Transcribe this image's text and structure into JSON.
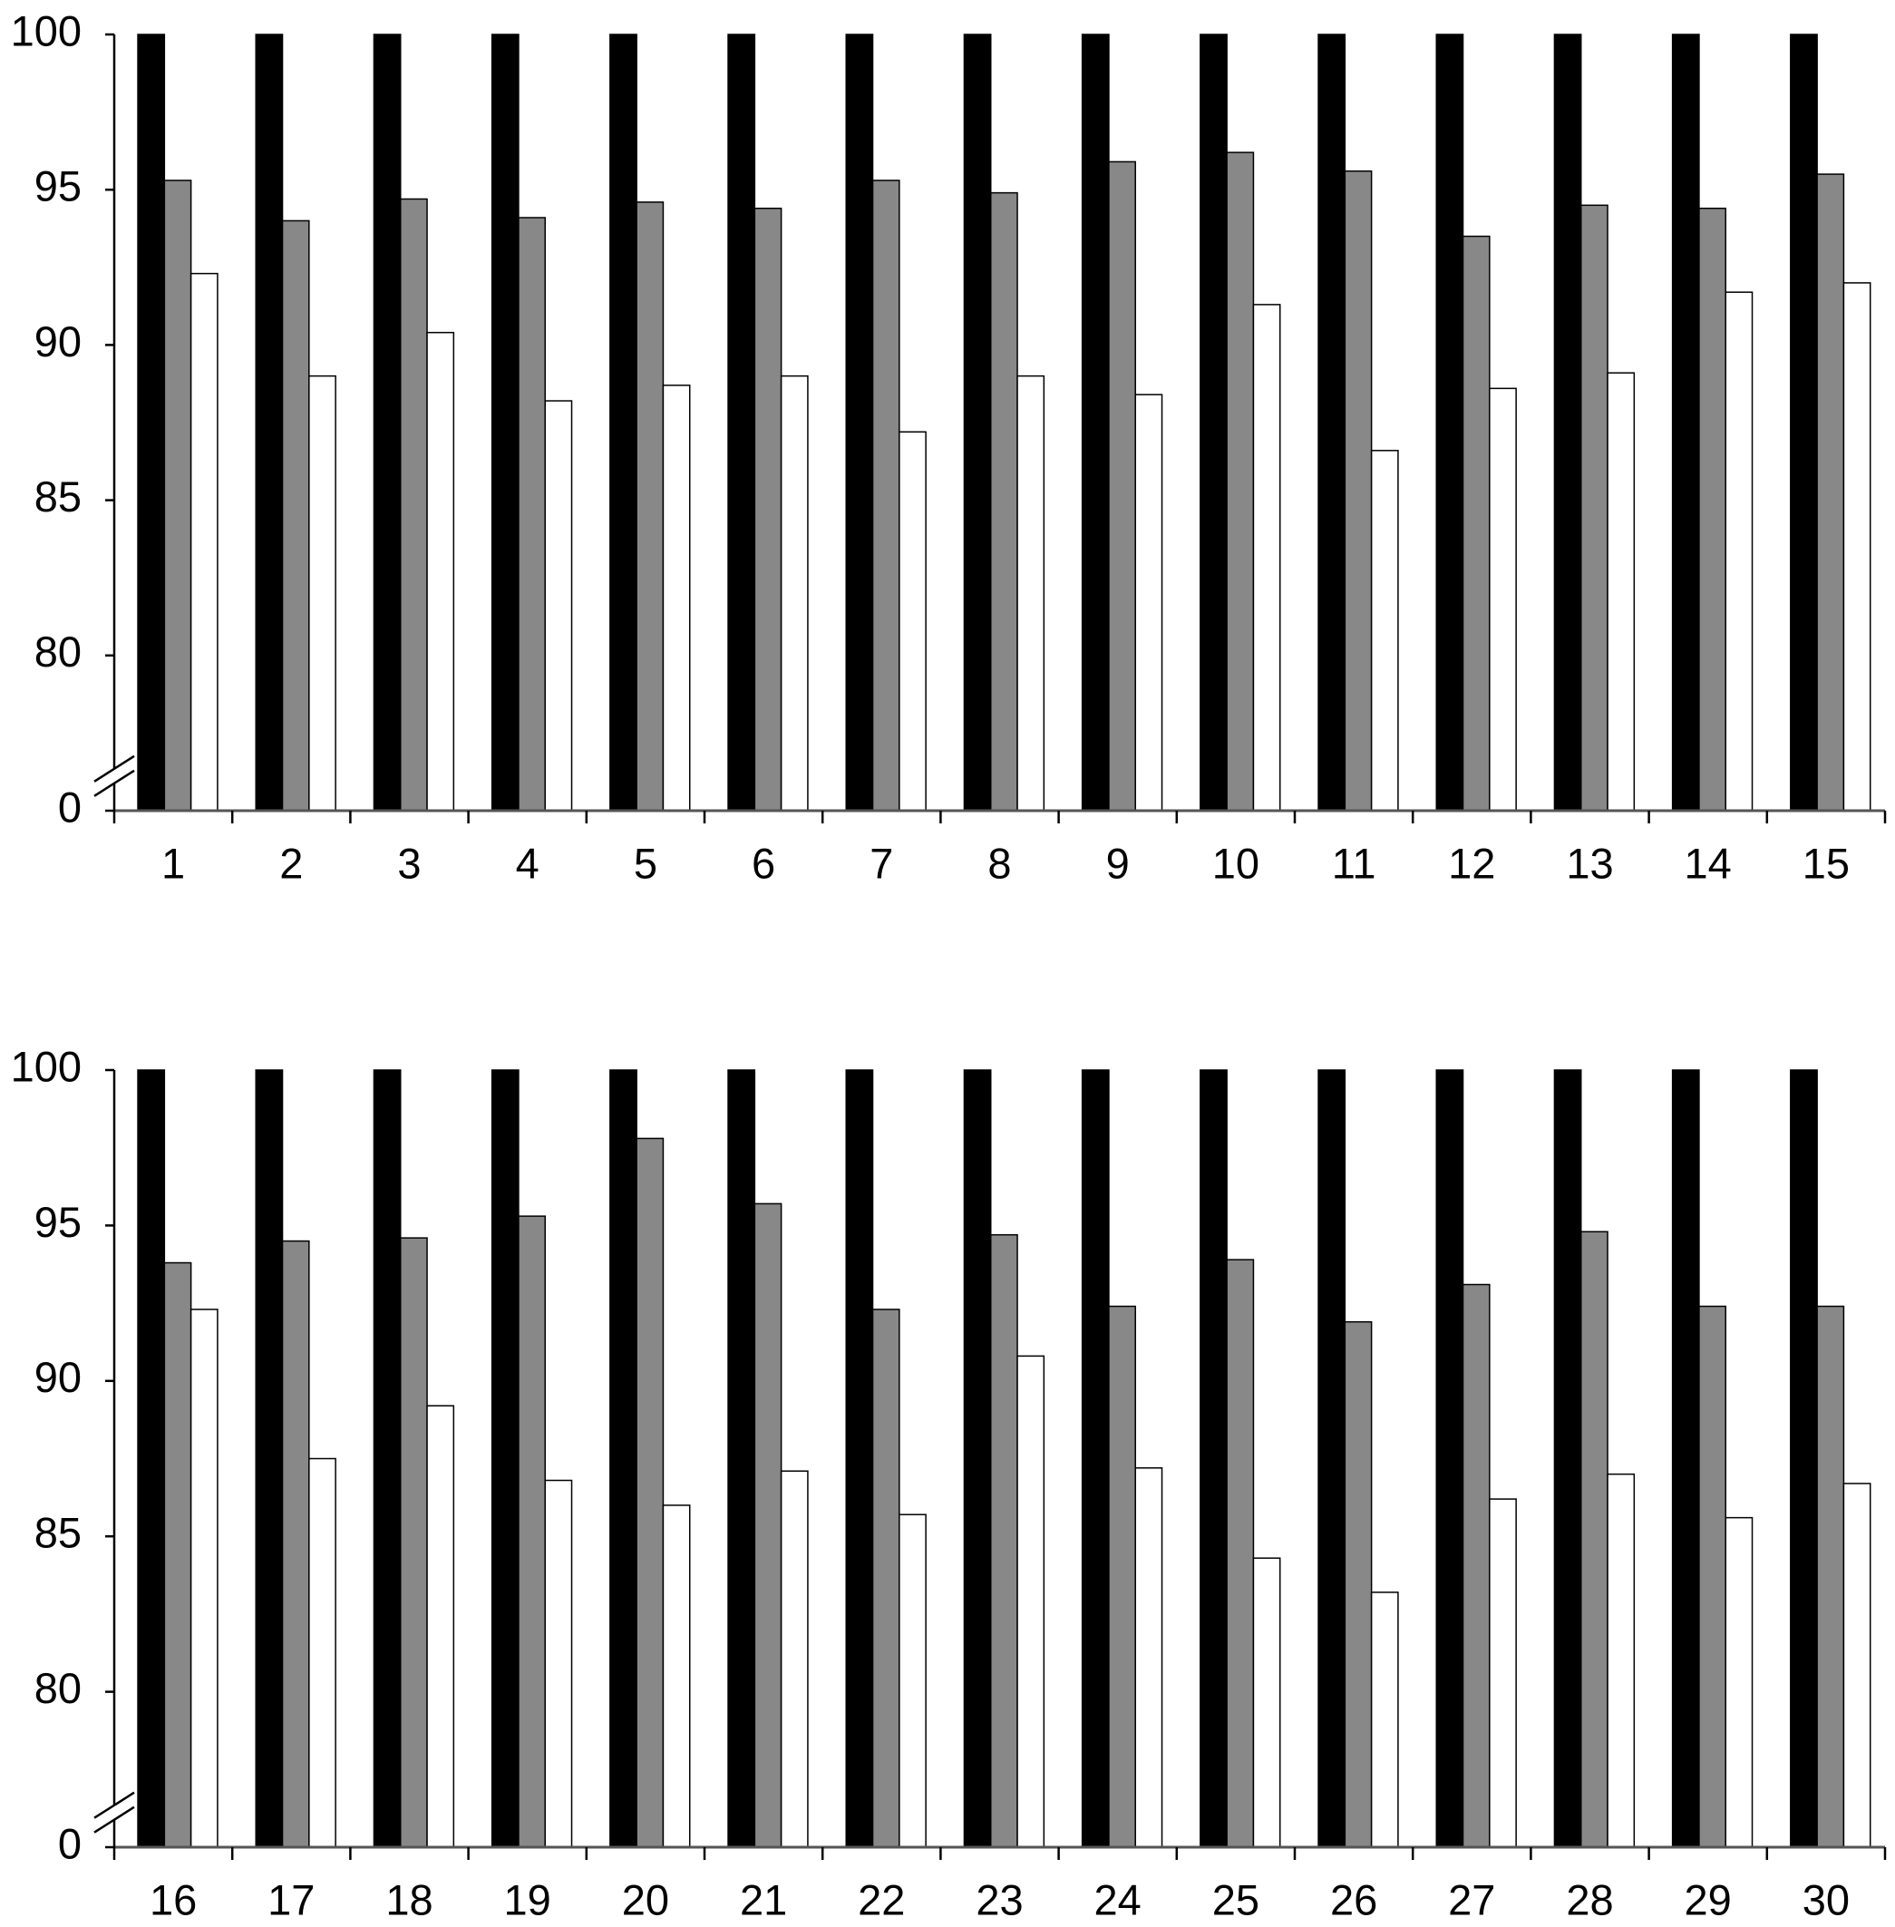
{
  "chart_data": [
    {
      "type": "bar",
      "axis_break": true,
      "categories": [
        "1",
        "2",
        "3",
        "4",
        "5",
        "6",
        "7",
        "8",
        "9",
        "10",
        "11",
        "12",
        "13",
        "14",
        "15"
      ],
      "series": [
        {
          "color": "#000000",
          "values": [
            100,
            100,
            100,
            100,
            100,
            100,
            100,
            100,
            100,
            100,
            100,
            100,
            100,
            100,
            100
          ]
        },
        {
          "color": "#888888",
          "values": [
            95.3,
            94.0,
            94.7,
            94.1,
            94.6,
            94.4,
            95.3,
            94.9,
            95.9,
            96.2,
            95.6,
            93.5,
            94.5,
            94.4,
            95.5
          ]
        },
        {
          "color": "#ffffff",
          "values": [
            92.3,
            89.0,
            90.4,
            88.2,
            88.7,
            89.0,
            87.2,
            89.0,
            88.4,
            91.3,
            86.6,
            88.6,
            89.1,
            91.7,
            92.0
          ]
        }
      ],
      "ylim": [
        0,
        100
      ],
      "yticks": [
        0,
        80,
        85,
        90,
        95,
        100
      ]
    },
    {
      "type": "bar",
      "axis_break": true,
      "categories": [
        "16",
        "17",
        "18",
        "19",
        "20",
        "21",
        "22",
        "23",
        "24",
        "25",
        "26",
        "27",
        "28",
        "29",
        "30"
      ],
      "series": [
        {
          "color": "#000000",
          "values": [
            100,
            100,
            100,
            100,
            100,
            100,
            100,
            100,
            100,
            100,
            100,
            100,
            100,
            100,
            100
          ]
        },
        {
          "color": "#888888",
          "values": [
            93.8,
            94.5,
            94.6,
            95.3,
            97.8,
            95.7,
            92.3,
            94.7,
            92.4,
            93.9,
            91.9,
            93.1,
            94.8,
            92.4,
            92.4
          ]
        },
        {
          "color": "#ffffff",
          "values": [
            92.3,
            87.5,
            89.2,
            86.8,
            86.0,
            87.1,
            85.7,
            90.8,
            87.2,
            84.3,
            83.2,
            86.2,
            87.0,
            85.6,
            86.7
          ]
        }
      ],
      "ylim": [
        0,
        100
      ],
      "yticks": [
        0,
        80,
        85,
        90,
        95,
        100
      ]
    }
  ]
}
